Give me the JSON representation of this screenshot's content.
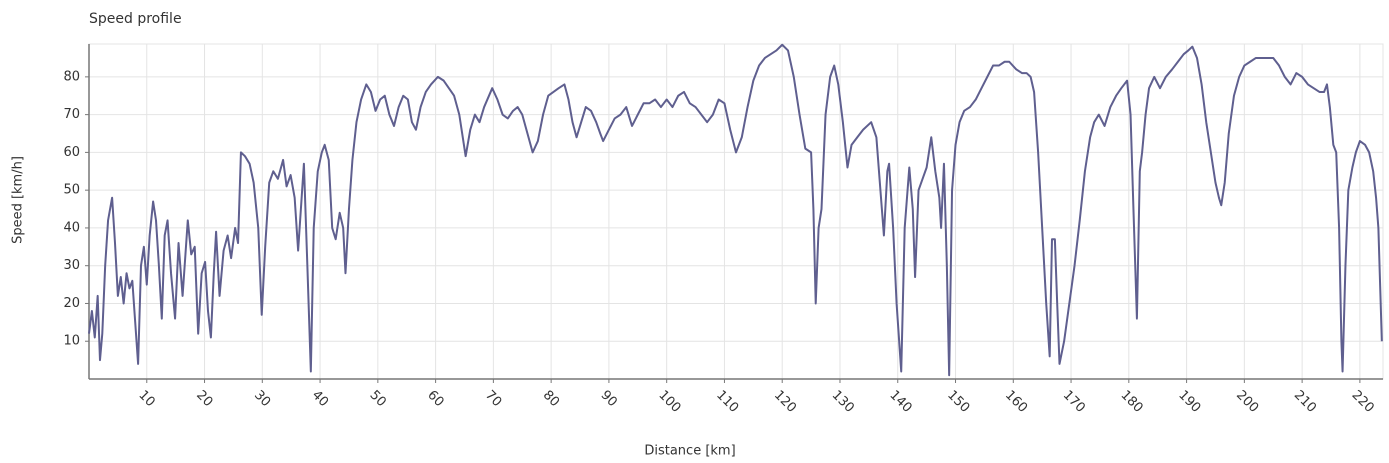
{
  "chart_data": {
    "type": "line",
    "title": "Speed profile",
    "x_label": "Distance [km]",
    "y_label": "Speed [km/h]",
    "color": "#5f5f8f",
    "grid": true,
    "xlim": [
      0,
      224
    ],
    "ylim": [
      0,
      88.7
    ],
    "xticks": [
      10,
      20,
      30,
      40,
      50,
      60,
      70,
      80,
      90,
      100,
      110,
      120,
      130,
      140,
      150,
      160,
      170,
      180,
      190,
      200,
      210,
      220
    ],
    "yticks": [
      10,
      20,
      30,
      40,
      50,
      60,
      70,
      80
    ],
    "x": [
      0,
      0.5,
      1,
      1.5,
      1.9,
      2.3,
      2.8,
      3.3,
      4,
      4.5,
      5,
      5.5,
      6,
      6.5,
      7,
      7.5,
      8,
      8.5,
      9,
      9.5,
      10,
      10.5,
      11.1,
      11.6,
      12.1,
      12.6,
      13.1,
      13.6,
      14.2,
      14.9,
      15.5,
      16.2,
      17.1,
      17.7,
      18.3,
      18.9,
      19.5,
      20.1,
      20.6,
      21.1,
      21.6,
      22,
      22.6,
      23.3,
      24,
      24.6,
      25.3,
      25.8,
      26.3,
      27,
      27.8,
      28.5,
      29.3,
      29.9,
      30.5,
      31.2,
      31.9,
      32.7,
      33.6,
      34.2,
      34.9,
      35.6,
      36.2,
      37.2,
      37.8,
      38.4,
      38.9,
      39.6,
      40.3,
      40.8,
      41.5,
      42.1,
      42.7,
      43.4,
      44,
      44.4,
      45,
      45.6,
      46.3,
      47.1,
      48,
      48.8,
      49.6,
      50.4,
      51.2,
      52,
      52.8,
      53.6,
      54.4,
      55.2,
      55.9,
      56.6,
      57.4,
      58.3,
      59.2,
      60.4,
      61.4,
      62.3,
      63.2,
      64.1,
      65.2,
      66,
      66.8,
      67.6,
      68.4,
      69.8,
      70.7,
      71.6,
      72.5,
      73.4,
      74.2,
      75,
      75.9,
      76.8,
      77.7,
      78.6,
      79.5,
      80.4,
      81.3,
      82.3,
      83,
      83.7,
      84.4,
      85.2,
      86,
      86.9,
      87.8,
      88.5,
      89,
      90,
      91,
      92,
      93,
      94,
      95,
      96,
      97,
      98,
      99,
      100,
      101,
      102,
      103,
      104,
      105,
      106,
      107,
      108,
      109,
      110,
      111,
      112,
      113,
      114,
      115,
      116,
      117,
      118,
      119,
      120,
      121,
      122,
      123,
      124,
      125,
      125.4,
      125.8,
      126.3,
      126.8,
      127.5,
      128.3,
      129,
      129.7,
      130.5,
      131.3,
      132,
      133,
      134,
      135.4,
      136.3,
      137,
      137.6,
      138.2,
      138.5,
      139.2,
      139.8,
      140.6,
      141.2,
      142,
      142.6,
      143,
      143.6,
      144.3,
      145,
      145.8,
      146.5,
      147.2,
      147.5,
      148,
      148.5,
      148.9,
      149.4,
      150,
      150.7,
      151.5,
      152.5,
      153.5,
      154.5,
      155.5,
      156.5,
      157.5,
      158.5,
      159.3,
      160.5,
      161.5,
      162.3,
      163,
      163.6,
      164.3,
      165,
      165.7,
      166.3,
      166.7,
      167.2,
      167.6,
      168,
      168.8,
      169.7,
      170.6,
      171.5,
      172.4,
      173.3,
      174,
      174.8,
      175.8,
      176.8,
      177.8,
      178.7,
      179.7,
      180.3,
      180.8,
      181.4,
      181.9,
      182.3,
      182.9,
      183.5,
      184.4,
      185.4,
      186.4,
      187.5,
      188.5,
      189.5,
      190.3,
      191,
      191.8,
      192.6,
      193.4,
      194.2,
      195,
      195.6,
      196,
      196.6,
      197.3,
      198.2,
      199.1,
      200,
      201,
      202,
      203,
      204.3,
      205,
      206,
      207,
      208,
      209,
      210,
      211,
      212,
      213,
      213.8,
      214.3,
      214.8,
      215.4,
      215.9,
      216.4,
      216.8,
      217,
      217.5,
      218,
      218.7,
      219.3,
      220,
      220.9,
      221.6,
      222.3,
      222.8,
      223.2,
      223.8
    ],
    "values": [
      12,
      18,
      11,
      22,
      5,
      12,
      30,
      42,
      48,
      36,
      22,
      27,
      20,
      28,
      24,
      26,
      15,
      4,
      30,
      35,
      25,
      38,
      47,
      42,
      30,
      16,
      38,
      42,
      28,
      16,
      36,
      22,
      42,
      33,
      35,
      12,
      28,
      31,
      18,
      11,
      28,
      39,
      22,
      34,
      38,
      32,
      40,
      36,
      60,
      59,
      57,
      52,
      40,
      17,
      35,
      52,
      55,
      53,
      58,
      51,
      54,
      48,
      34,
      57,
      30,
      2,
      40,
      55,
      60,
      62,
      58,
      40,
      37,
      44,
      40,
      28,
      45,
      58,
      68,
      74,
      78,
      76,
      71,
      74,
      75,
      70,
      67,
      72,
      75,
      74,
      68,
      66,
      72,
      76,
      78,
      80,
      79,
      77,
      75,
      70,
      59,
      66,
      70,
      68,
      72,
      77,
      74,
      70,
      69,
      71,
      72,
      70,
      65,
      60,
      63,
      70,
      75,
      76,
      77,
      78,
      74,
      68,
      64,
      68,
      72,
      71,
      68,
      65,
      63,
      66,
      69,
      70,
      72,
      67,
      70,
      73,
      73,
      74,
      72,
      74,
      72,
      75,
      76,
      73,
      72,
      70,
      68,
      70,
      74,
      73,
      66,
      60,
      64,
      72,
      79,
      83,
      85,
      86,
      87,
      88.5,
      87,
      80,
      70,
      61,
      60,
      45,
      20,
      40,
      45,
      70,
      80,
      83,
      78,
      68,
      56,
      62,
      64,
      66,
      68,
      64,
      50,
      38,
      55,
      57,
      40,
      20,
      2,
      40,
      56,
      45,
      27,
      50,
      53,
      56,
      64,
      55,
      48,
      40,
      57,
      30,
      1,
      50,
      62,
      68,
      71,
      72,
      74,
      77,
      80,
      83,
      83,
      84,
      84,
      82,
      81,
      81,
      80,
      76,
      60,
      40,
      20,
      6,
      37,
      37,
      20,
      4,
      10,
      20,
      30,
      42,
      55,
      64,
      68,
      70,
      67,
      72,
      75,
      77,
      79,
      70,
      45,
      16,
      55,
      60,
      70,
      77,
      80,
      77,
      80,
      82,
      84,
      86,
      87,
      88,
      85,
      78,
      68,
      60,
      52,
      48,
      46,
      52,
      65,
      75,
      80,
      83,
      84,
      85,
      85,
      85,
      85,
      83,
      80,
      78,
      81,
      80,
      78,
      77,
      76,
      76,
      78,
      72,
      62,
      60,
      40,
      10,
      2,
      30,
      50,
      56,
      60,
      63,
      62,
      60,
      55,
      48,
      40,
      10
    ]
  }
}
